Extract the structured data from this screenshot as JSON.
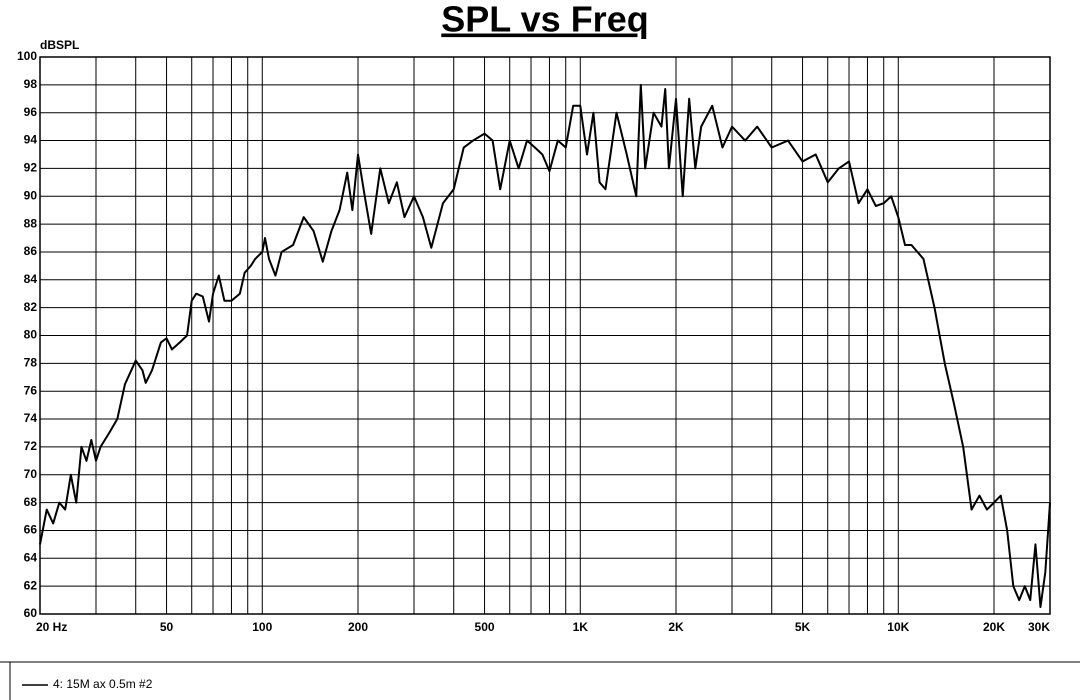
{
  "chart_data": {
    "type": "line",
    "title": "SPL vs Freq",
    "y_label": "dBSPL",
    "xscale": "log",
    "xlim": [
      20,
      30000
    ],
    "ylim": [
      60,
      100
    ],
    "xticks": [
      {
        "value": 20,
        "label": "20  Hz"
      },
      50,
      100,
      200,
      500,
      {
        "value": 1000,
        "label": "1K"
      },
      {
        "value": 2000,
        "label": "2K"
      },
      {
        "value": 5000,
        "label": "5K"
      },
      {
        "value": 10000,
        "label": "10K"
      },
      {
        "value": 20000,
        "label": "20K"
      },
      {
        "value": 30000,
        "label": "30K"
      }
    ],
    "xgrid": [
      20,
      30,
      40,
      50,
      60,
      70,
      80,
      90,
      100,
      200,
      300,
      400,
      500,
      600,
      700,
      800,
      900,
      1000,
      2000,
      3000,
      4000,
      5000,
      6000,
      7000,
      8000,
      9000,
      10000,
      20000,
      30000
    ],
    "yticks": [
      60,
      62,
      64,
      66,
      68,
      70,
      72,
      74,
      76,
      78,
      80,
      82,
      84,
      86,
      88,
      90,
      92,
      94,
      96,
      98,
      100
    ],
    "grid": true,
    "x": [
      20,
      21,
      22,
      23,
      24,
      25,
      26,
      27,
      28,
      29,
      30,
      31,
      33,
      35,
      37,
      40,
      42,
      43,
      45,
      48,
      50,
      52,
      55,
      58,
      60,
      62,
      65,
      68,
      70,
      73,
      76,
      80,
      85,
      88,
      92,
      95,
      100,
      102,
      105,
      110,
      115,
      125,
      135,
      145,
      155,
      165,
      175,
      185,
      192,
      200,
      210,
      220,
      235,
      250,
      265,
      280,
      300,
      320,
      340,
      370,
      400,
      430,
      460,
      500,
      530,
      560,
      600,
      640,
      680,
      720,
      760,
      800,
      850,
      900,
      950,
      1000,
      1050,
      1100,
      1150,
      1200,
      1300,
      1400,
      1500,
      1550,
      1600,
      1700,
      1800,
      1850,
      1900,
      2000,
      2100,
      2200,
      2300,
      2400,
      2600,
      2800,
      3000,
      3300,
      3600,
      4000,
      4500,
      5000,
      5500,
      6000,
      6500,
      7000,
      7500,
      8000,
      8500,
      9000,
      9500,
      10000,
      10500,
      11000,
      12000,
      13000,
      14000,
      15000,
      16000,
      17000,
      18000,
      19000,
      20000,
      21000,
      22000,
      23000,
      24000,
      25000,
      26000,
      27000,
      28000,
      29000,
      30000
    ],
    "series": [
      {
        "name": "4: 15M ax 0.5m  #2",
        "color": "#000000",
        "values": [
          65,
          67.5,
          66.5,
          68,
          67.5,
          70,
          68,
          72,
          71,
          72.5,
          71,
          72,
          73,
          74,
          76.5,
          78.2,
          77.5,
          76.6,
          77.5,
          79.5,
          79.8,
          79,
          79.5,
          80,
          82.5,
          83,
          82.8,
          81,
          83,
          84.3,
          82.5,
          82.5,
          83,
          84.5,
          85,
          85.5,
          86,
          87,
          85.5,
          84.3,
          86,
          86.5,
          88.5,
          87.5,
          85.3,
          87.5,
          89,
          91.7,
          89,
          93,
          90,
          87.3,
          92,
          89.5,
          91,
          88.5,
          90,
          88.5,
          86.3,
          89.5,
          90.5,
          93.5,
          94,
          94.5,
          94,
          90.5,
          94,
          92,
          94,
          93.5,
          93,
          91.8,
          94,
          93.5,
          96.5,
          96.5,
          93,
          96,
          91,
          90.5,
          96,
          93,
          90,
          98,
          92,
          96,
          95,
          97.7,
          92,
          97,
          90,
          97,
          92,
          95,
          96.5,
          93.5,
          95,
          94,
          95,
          93.5,
          94,
          92.5,
          93,
          91,
          92,
          92.5,
          89.5,
          90.5,
          89.3,
          89.5,
          90,
          88.5,
          86.5,
          86.5,
          85.5,
          82,
          78,
          75,
          72,
          67.5,
          68.5,
          67.5,
          68,
          68.5,
          66,
          62,
          61,
          62,
          61,
          65,
          60.5,
          63,
          68
        ]
      }
    ]
  }
}
